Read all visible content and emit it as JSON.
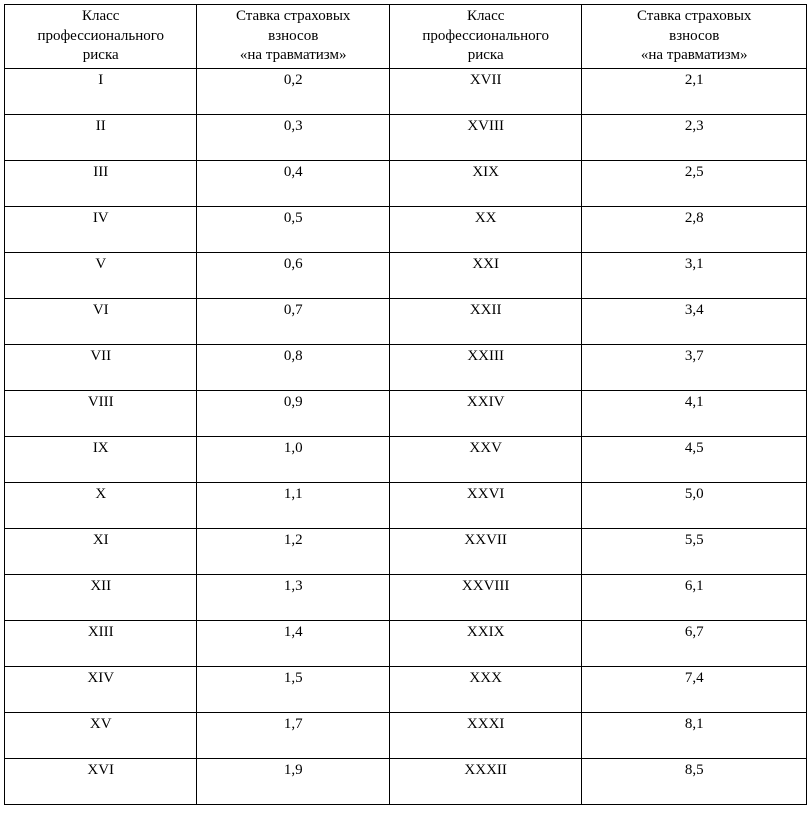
{
  "table": {
    "type": "table",
    "background_color": "#ffffff",
    "border_color": "#000000",
    "text_color": "#000000",
    "font_family": "Times New Roman",
    "font_size": 15,
    "columns": [
      {
        "header_line1": "Класс",
        "header_line2": "профессионального",
        "header_line3": "риска"
      },
      {
        "header_line1": "Ставка страховых",
        "header_line2": "взносов",
        "header_line3": "«на травматизм»"
      },
      {
        "header_line1": "Класс",
        "header_line2": "профессионального",
        "header_line3": "риска"
      },
      {
        "header_line1": "Ставка страховых",
        "header_line2": "взносов",
        "header_line3": "«на травматизм»"
      }
    ],
    "rows": [
      {
        "c1": "I",
        "c2": "0,2",
        "c3": "XVII",
        "c4": "2,1"
      },
      {
        "c1": "II",
        "c2": "0,3",
        "c3": "XVIII",
        "c4": "2,3"
      },
      {
        "c1": "III",
        "c2": "0,4",
        "c3": "XIX",
        "c4": "2,5"
      },
      {
        "c1": "IV",
        "c2": "0,5",
        "c3": "XX",
        "c4": "2,8"
      },
      {
        "c1": "V",
        "c2": "0,6",
        "c3": "XXI",
        "c4": "3,1"
      },
      {
        "c1": "VI",
        "c2": "0,7",
        "c3": "XXII",
        "c4": "3,4"
      },
      {
        "c1": "VII",
        "c2": "0,8",
        "c3": "XXIII",
        "c4": "3,7"
      },
      {
        "c1": "VIII",
        "c2": "0,9",
        "c3": "XXIV",
        "c4": "4,1"
      },
      {
        "c1": "IX",
        "c2": "1,0",
        "c3": "XXV",
        "c4": "4,5"
      },
      {
        "c1": "X",
        "c2": "1,1",
        "c3": "XXVI",
        "c4": "5,0"
      },
      {
        "c1": "XI",
        "c2": "1,2",
        "c3": "XXVII",
        "c4": "5,5"
      },
      {
        "c1": "XII",
        "c2": "1,3",
        "c3": "XXVIII",
        "c4": "6,1"
      },
      {
        "c1": "XIII",
        "c2": "1,4",
        "c3": "XXIX",
        "c4": "6,7"
      },
      {
        "c1": "XIV",
        "c2": "1,5",
        "c3": "XXX",
        "c4": "7,4"
      },
      {
        "c1": "XV",
        "c2": "1,7",
        "c3": "XXXI",
        "c4": "8,1"
      },
      {
        "c1": "XVI",
        "c2": "1,9",
        "c3": "XXXII",
        "c4": "8,5"
      }
    ]
  }
}
